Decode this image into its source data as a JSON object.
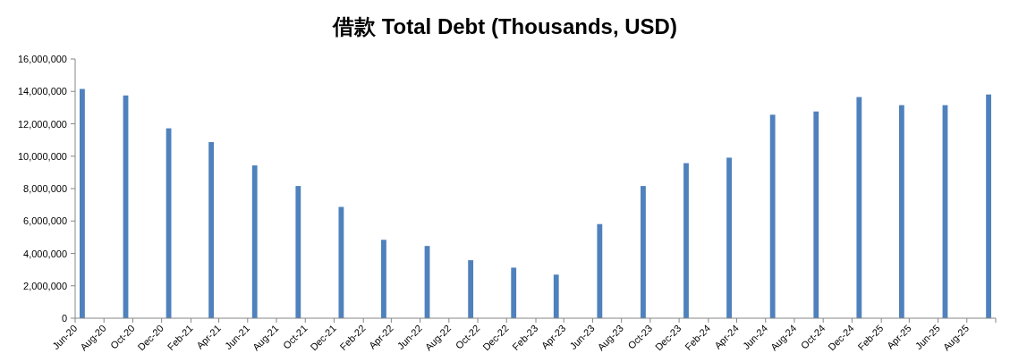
{
  "chart_data": {
    "type": "bar",
    "title": "借款 Total Debt (Thousands, USD)",
    "color": "#4f81bd",
    "grid": false,
    "x": [
      "2020-06-16",
      "2020-09-16",
      "2020-12-16",
      "2021-03-16",
      "2021-06-16",
      "2021-09-16",
      "2021-12-16",
      "2022-03-16",
      "2022-06-16",
      "2022-09-16",
      "2022-12-16",
      "2023-03-16",
      "2023-06-16",
      "2023-09-16",
      "2023-12-16",
      "2024-03-16",
      "2024-06-16",
      "2024-09-16",
      "2024-12-16",
      "2025-03-16",
      "2025-06-16",
      "2025-09-16"
    ],
    "values": [
      14150000,
      13750000,
      11720000,
      10870000,
      9430000,
      8160000,
      6870000,
      4840000,
      4460000,
      3580000,
      3120000,
      2690000,
      5810000,
      8160000,
      9570000,
      9910000,
      12560000,
      12760000,
      13650000,
      13150000,
      13150000,
      13810000
    ],
    "xlim": [
      "2020-06",
      "2025-10"
    ],
    "xticks": [
      {
        "value": "2020-06",
        "label": "Jun-20"
      },
      {
        "value": "2020-08",
        "label": "Aug-20"
      },
      {
        "value": "2020-10",
        "label": "Oct-20"
      },
      {
        "value": "2020-12",
        "label": "Dec-20"
      },
      {
        "value": "2021-02",
        "label": "Feb-21"
      },
      {
        "value": "2021-04",
        "label": "Apr-21"
      },
      {
        "value": "2021-06",
        "label": "Jun-21"
      },
      {
        "value": "2021-08",
        "label": "Aug-21"
      },
      {
        "value": "2021-10",
        "label": "Oct-21"
      },
      {
        "value": "2021-12",
        "label": "Dec-21"
      },
      {
        "value": "2022-02",
        "label": "Feb-22"
      },
      {
        "value": "2022-04",
        "label": "Apr-22"
      },
      {
        "value": "2022-06",
        "label": "Jun-22"
      },
      {
        "value": "2022-08",
        "label": "Aug-22"
      },
      {
        "value": "2022-10",
        "label": "Oct-22"
      },
      {
        "value": "2022-12",
        "label": "Dec-22"
      },
      {
        "value": "2023-02",
        "label": "Feb-23"
      },
      {
        "value": "2023-04",
        "label": "Apr-23"
      },
      {
        "value": "2023-06",
        "label": "Jun-23"
      },
      {
        "value": "2023-08",
        "label": "Aug-23"
      },
      {
        "value": "2023-10",
        "label": "Oct-23"
      },
      {
        "value": "2023-12",
        "label": "Dec-23"
      },
      {
        "value": "2024-02",
        "label": "Feb-24"
      },
      {
        "value": "2024-04",
        "label": "Apr-24"
      },
      {
        "value": "2024-06",
        "label": "Jun-24"
      },
      {
        "value": "2024-08",
        "label": "Aug-24"
      },
      {
        "value": "2024-10",
        "label": "Oct-24"
      },
      {
        "value": "2024-12",
        "label": "Dec-24"
      },
      {
        "value": "2025-02",
        "label": "Feb-25"
      },
      {
        "value": "2025-04",
        "label": "Apr-25"
      },
      {
        "value": "2025-06",
        "label": "Jun-25"
      },
      {
        "value": "2025-08",
        "label": "Aug-25"
      },
      {
        "value": "2025-10",
        "label": null
      }
    ],
    "ylim": [
      0,
      16000000
    ],
    "yticks": [
      0,
      {
        "value": 2000000,
        "label": "2,000,000"
      },
      {
        "value": 4000000,
        "label": "4,000,000"
      },
      {
        "value": 6000000,
        "label": "6,000,000"
      },
      {
        "value": 8000000,
        "label": "8,000,000"
      },
      {
        "value": 10000000,
        "label": "10,000,000"
      },
      {
        "value": 12000000,
        "label": "12,000,000"
      },
      {
        "value": 14000000,
        "label": "14,000,000"
      },
      {
        "value": 16000000,
        "label": "16,000,000"
      }
    ]
  }
}
